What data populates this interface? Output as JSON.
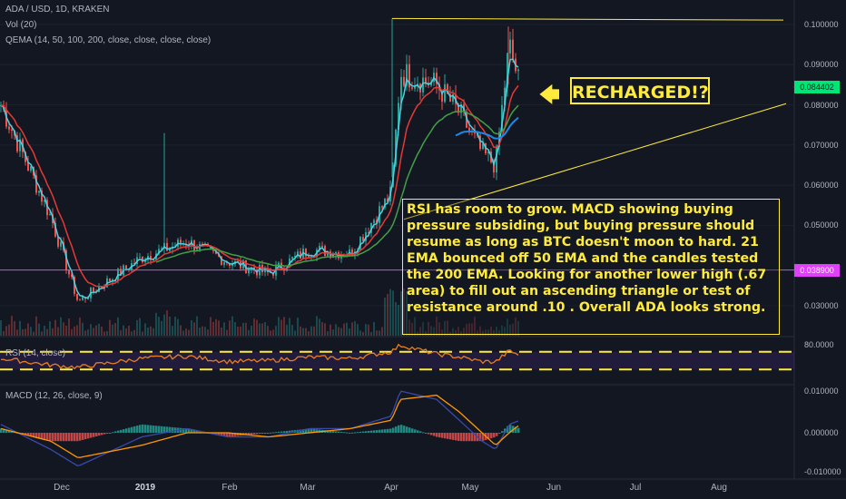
{
  "header": {
    "symbol": "ADA / USD, 1D, KRAKEN",
    "volume_indicator": "Vol (20)",
    "ema_indicator": "QEMA (14, 50, 100, 200, close, close, close, close)"
  },
  "rsi_panel": {
    "label": "RSI (14, close)",
    "tick": "80.0000",
    "upper_level": 70,
    "lower_level": 30
  },
  "macd_panel": {
    "label": "MACD (12, 26, close, 9)",
    "ticks": [
      "0.010000",
      "0.000000",
      "-0.010000"
    ]
  },
  "price_ticks": [
    "0.100000",
    "0.090000",
    "0.080000",
    "0.070000",
    "0.060000",
    "0.050000",
    "0.030000"
  ],
  "price_tags": {
    "last": {
      "text": "0.084402",
      "value": 0.084402,
      "color": "#00e676"
    },
    "level": {
      "text": "0.038900",
      "value": 0.0389,
      "color": "#e040fb"
    }
  },
  "x_ticks": [
    {
      "label": "Dec",
      "bold": false
    },
    {
      "label": "2019",
      "bold": true
    },
    {
      "label": "Feb",
      "bold": false
    },
    {
      "label": "Mar",
      "bold": false
    },
    {
      "label": "Apr",
      "bold": false
    },
    {
      "label": "May",
      "bold": false
    },
    {
      "label": "Jun",
      "bold": false
    },
    {
      "label": "Jul",
      "bold": false
    },
    {
      "label": "Aug",
      "bold": false
    }
  ],
  "annotations": {
    "arrow": "🡄",
    "callout": "RECHARGED!?",
    "note": "RSI has room to grow. MACD showing buying pressure subsiding, but buying pressure should resume as long as BTC doesn't moon to hard. 21 EMA bounced off 50 EMA and the candles tested the 200 EMA. Looking for another lower high (.67 area) to fill out an ascending triangle or test of resistance around .10 . Overall ADA looks strong."
  },
  "colors": {
    "background": "#131722",
    "up_candle": "#26a69a",
    "down_candle": "#ef5350",
    "ema_fast": "#4dd0e1",
    "ema_mid": "#e53935",
    "ema_slow": "#43a047",
    "ema_long": "#1e88e5",
    "trendline": "#ffeb3b",
    "rsi_line": "#e67e22",
    "macd_line": "#3949ab",
    "signal_line": "#ff9800"
  },
  "chart_data": {
    "type": "line",
    "title": "ADA / USD, 1D, KRAKEN",
    "ylim": [
      0.024,
      0.104
    ],
    "x": [
      "Nov-19",
      "Dec-1",
      "Dec-15",
      "Jan-1",
      "Jan-15",
      "Feb-1",
      "Feb-15",
      "Mar-1",
      "Mar-15",
      "Apr-1",
      "Apr-8",
      "Apr-15",
      "Apr-22",
      "May-1",
      "May-8",
      "May-15",
      "May-17"
    ],
    "series": [
      {
        "name": "close",
        "values": [
          0.08,
          0.052,
          0.031,
          0.042,
          0.046,
          0.041,
          0.038,
          0.044,
          0.043,
          0.058,
          0.088,
          0.085,
          0.078,
          0.068,
          0.065,
          0.095,
          0.084402
        ]
      }
    ],
    "levels": [
      0.0389
    ],
    "resistance": 0.1015,
    "rsi": {
      "ylim": [
        0,
        100
      ],
      "values": [
        55,
        40,
        35,
        55,
        60,
        48,
        50,
        58,
        55,
        70,
        85,
        65,
        58,
        48,
        47,
        72,
        62
      ]
    },
    "macd": {
      "ylim": [
        -0.011,
        0.011
      ],
      "macd": [
        0.002,
        -0.004,
        -0.008,
        -0.001,
        0.001,
        -0.001,
        -0.001,
        0.001,
        0.001,
        0.004,
        0.01,
        0.008,
        0.003,
        -0.002,
        -0.004,
        0.002,
        0.003
      ],
      "signal": [
        0.001,
        -0.002,
        -0.006,
        -0.003,
        0.0,
        0.0,
        -0.001,
        0.0,
        0.001,
        0.003,
        0.008,
        0.009,
        0.005,
        0.0,
        -0.003,
        0.0,
        0.002
      ]
    }
  }
}
